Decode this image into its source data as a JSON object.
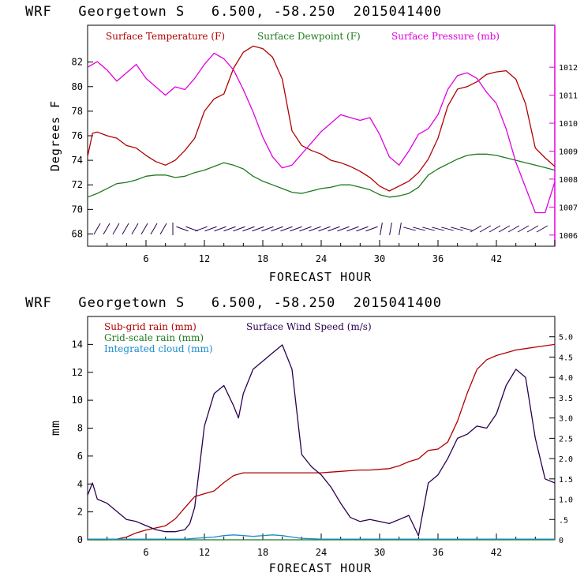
{
  "chart_data": [
    {
      "type": "line",
      "title": "WRF   Georgetown S   6.500, -58.250  2015041400",
      "xlabel": "FORECAST HOUR",
      "ylabel": "Degrees F",
      "ylabel_right": "",
      "xlim": [
        0,
        48
      ],
      "ylim": [
        67,
        85
      ],
      "ylim_right": [
        1005.6,
        1013.5
      ],
      "x_ticks": [
        6,
        12,
        18,
        24,
        30,
        36,
        42
      ],
      "y_ticks": [
        68,
        70,
        72,
        74,
        76,
        78,
        80,
        82
      ],
      "y_ticks_right": [
        1006,
        1007,
        1008,
        1009,
        1010,
        1011,
        1012
      ],
      "legend": [
        "Surface Temperature (F)",
        "Surface Dewpoint (F)",
        "Surface Pressure (mb)"
      ],
      "series": [
        {
          "name": "Surface Temperature (F)",
          "color": "#b00000",
          "axis": "left",
          "x": [
            0,
            0.5,
            1,
            2,
            3,
            4,
            5,
            6,
            7,
            8,
            9,
            10,
            11,
            12,
            13,
            14,
            15,
            16,
            17,
            18,
            19,
            20,
            21,
            22,
            23,
            24,
            25,
            26,
            27,
            28,
            29,
            30,
            31,
            32,
            33,
            34,
            35,
            36,
            37,
            38,
            39,
            40,
            41,
            42,
            43,
            44,
            45,
            46,
            47,
            48
          ],
          "values": [
            74.3,
            76.2,
            76.3,
            76.0,
            75.8,
            75.2,
            75.0,
            74.4,
            73.9,
            73.6,
            74.0,
            74.8,
            75.8,
            78.0,
            79.0,
            79.4,
            81.5,
            82.8,
            83.3,
            83.1,
            82.4,
            80.6,
            76.4,
            75.2,
            74.8,
            74.5,
            74.0,
            73.8,
            73.5,
            73.1,
            72.6,
            71.9,
            71.5,
            71.9,
            72.3,
            73.0,
            74.1,
            75.8,
            78.4,
            79.8,
            80.0,
            80.4,
            81.0,
            81.2,
            81.3,
            80.6,
            78.6,
            75.0,
            74.2,
            73.5
          ]
        },
        {
          "name": "Surface Dewpoint (F)",
          "color": "#1e7a1e",
          "axis": "left",
          "x": [
            0,
            1,
            2,
            3,
            4,
            5,
            6,
            7,
            8,
            9,
            10,
            11,
            12,
            13,
            14,
            15,
            16,
            17,
            18,
            19,
            20,
            21,
            22,
            23,
            24,
            25,
            26,
            27,
            28,
            29,
            30,
            31,
            32,
            33,
            34,
            35,
            36,
            37,
            38,
            39,
            40,
            41,
            42,
            43,
            44,
            45,
            46,
            47,
            48
          ],
          "values": [
            71.0,
            71.3,
            71.7,
            72.1,
            72.2,
            72.4,
            72.7,
            72.8,
            72.8,
            72.6,
            72.7,
            73.0,
            73.2,
            73.5,
            73.8,
            73.6,
            73.3,
            72.7,
            72.3,
            72.0,
            71.7,
            71.4,
            71.3,
            71.5,
            71.7,
            71.8,
            72.0,
            72.0,
            71.8,
            71.6,
            71.2,
            71.0,
            71.1,
            71.3,
            71.8,
            72.8,
            73.3,
            73.7,
            74.1,
            74.4,
            74.5,
            74.5,
            74.4,
            74.2,
            74.0,
            73.8,
            73.6,
            73.4,
            73.2
          ]
        },
        {
          "name": "Surface Pressure (mb)",
          "color": "#e000e0",
          "axis": "right",
          "x": [
            0,
            1,
            2,
            3,
            4,
            5,
            6,
            7,
            8,
            9,
            10,
            11,
            12,
            13,
            14,
            15,
            16,
            17,
            18,
            19,
            20,
            21,
            22,
            23,
            24,
            25,
            26,
            27,
            28,
            29,
            30,
            31,
            32,
            33,
            34,
            35,
            36,
            37,
            38,
            39,
            40,
            41,
            42,
            43,
            44,
            45,
            46,
            47,
            48
          ],
          "values": [
            1012.0,
            1012.2,
            1011.9,
            1011.5,
            1011.8,
            1012.1,
            1011.6,
            1011.3,
            1011.0,
            1011.3,
            1011.2,
            1011.6,
            1012.1,
            1012.5,
            1012.3,
            1011.9,
            1011.2,
            1010.4,
            1009.5,
            1008.8,
            1008.4,
            1008.5,
            1008.9,
            1009.3,
            1009.7,
            1010.0,
            1010.3,
            1010.2,
            1010.1,
            1010.2,
            1009.6,
            1008.8,
            1008.5,
            1009.0,
            1009.6,
            1009.8,
            1010.3,
            1011.2,
            1011.7,
            1011.8,
            1011.6,
            1011.1,
            1010.7,
            1009.8,
            1008.6,
            1007.7,
            1006.8,
            1006.8,
            1007.9
          ]
        }
      ],
      "wind_barbs_row": "Wind barbs along the lower edge of the panel"
    },
    {
      "type": "line",
      "title": "WRF   Georgetown S   6.500, -58.250  2015041400",
      "xlabel": "FORECAST HOUR",
      "ylabel": "mm",
      "xlim": [
        0,
        48
      ],
      "ylim": [
        0,
        16
      ],
      "ylim_right": [
        0,
        5.5
      ],
      "x_ticks": [
        6,
        12,
        18,
        24,
        30,
        36,
        42
      ],
      "y_ticks": [
        0,
        2,
        4,
        6,
        8,
        10,
        12,
        14
      ],
      "y_ticks_right": [
        "0",
        ".5",
        "1.0",
        "1.5",
        "2.0",
        "2.5",
        "3.0",
        "3.5",
        "4.0",
        "4.5",
        "5.0"
      ],
      "legend": [
        "Sub-grid rain (mm)",
        "Grid-scale rain (mm)",
        "Integrated cloud (mm)",
        "Surface Wind Speed (m/s)"
      ],
      "series": [
        {
          "name": "Sub-grid rain (mm)",
          "color": "#b00000",
          "axis": "left",
          "x": [
            0,
            2,
            3,
            4,
            5,
            6,
            7,
            8,
            9,
            10,
            11,
            12,
            13,
            14,
            15,
            16,
            17,
            18,
            19,
            20,
            21,
            22,
            23,
            24,
            25,
            26,
            27,
            28,
            29,
            30,
            31,
            32,
            33,
            34,
            35,
            36,
            37,
            38,
            39,
            40,
            41,
            42,
            43,
            44,
            45,
            46,
            47,
            48
          ],
          "values": [
            0,
            0,
            0.05,
            0.2,
            0.5,
            0.7,
            0.85,
            1.0,
            1.5,
            2.3,
            3.1,
            3.3,
            3.5,
            4.1,
            4.6,
            4.8,
            4.8,
            4.8,
            4.8,
            4.8,
            4.8,
            4.8,
            4.8,
            4.8,
            4.85,
            4.9,
            4.95,
            5.0,
            5.0,
            5.05,
            5.1,
            5.3,
            5.6,
            5.8,
            6.4,
            6.5,
            7.0,
            8.5,
            10.5,
            12.2,
            12.9,
            13.2,
            13.4,
            13.6,
            13.7,
            13.8,
            13.9,
            14.0
          ]
        },
        {
          "name": "Grid-scale rain (mm)",
          "color": "#1e7a1e",
          "axis": "left",
          "x": [
            0,
            48
          ],
          "values": [
            0,
            0
          ]
        },
        {
          "name": "Integrated cloud (mm)",
          "color": "#1a8ccc",
          "axis": "left",
          "x": [
            0,
            10,
            11,
            12,
            13,
            14,
            15,
            16,
            17,
            18,
            19,
            20,
            21,
            22,
            24,
            30,
            36,
            42,
            48
          ],
          "values": [
            0.05,
            0.05,
            0.1,
            0.15,
            0.2,
            0.3,
            0.35,
            0.3,
            0.25,
            0.3,
            0.35,
            0.3,
            0.2,
            0.1,
            0.05,
            0.05,
            0.05,
            0.05,
            0.05
          ]
        },
        {
          "name": "Surface Wind Speed (m/s)",
          "color": "#2a0050",
          "axis": "right",
          "x": [
            0,
            0.5,
            1,
            2,
            3,
            4,
            5,
            6,
            7,
            8,
            9,
            10,
            10.5,
            11,
            12,
            13,
            14,
            15,
            15.5,
            16,
            17,
            18,
            19,
            20,
            21,
            22,
            23,
            24,
            25,
            26,
            27,
            28,
            29,
            30,
            31,
            32,
            33,
            34,
            35,
            36,
            37,
            38,
            39,
            40,
            41,
            42,
            43,
            44,
            45,
            46,
            47,
            48
          ],
          "values": [
            1.1,
            1.4,
            1.0,
            0.9,
            0.7,
            0.5,
            0.45,
            0.35,
            0.25,
            0.2,
            0.2,
            0.25,
            0.4,
            0.8,
            2.8,
            3.6,
            3.8,
            3.3,
            3.0,
            3.6,
            4.2,
            4.4,
            4.6,
            4.8,
            4.2,
            2.1,
            1.8,
            1.6,
            1.3,
            0.9,
            0.55,
            0.45,
            0.5,
            0.45,
            0.4,
            0.5,
            0.6,
            0.1,
            1.4,
            1.6,
            2.0,
            2.5,
            2.6,
            2.8,
            2.75,
            3.1,
            3.8,
            4.2,
            4.0,
            2.5,
            1.5,
            1.4
          ]
        }
      ]
    }
  ]
}
